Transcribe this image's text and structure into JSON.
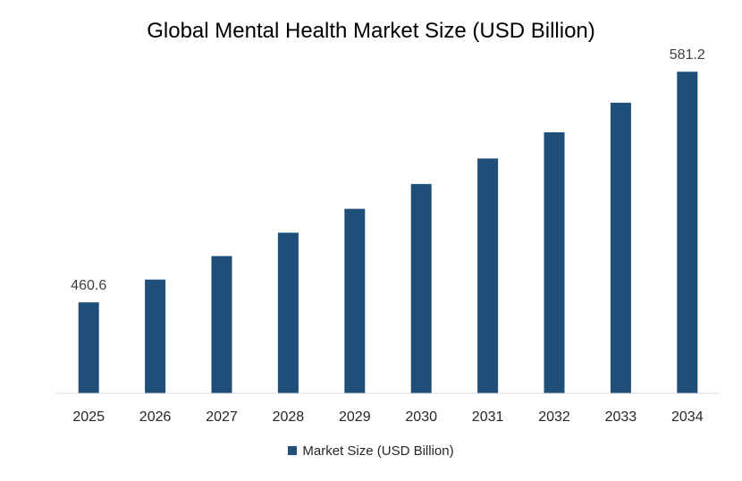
{
  "chart_data": {
    "type": "bar",
    "title": "Global Mental Health Market Size (USD Billion)",
    "categories": [
      "2025",
      "2026",
      "2027",
      "2028",
      "2029",
      "2030",
      "2031",
      "2032",
      "2033",
      "2034"
    ],
    "series": [
      {
        "name": "Market Size (USD Billion)",
        "values": [
          460.6,
          472.5,
          484.8,
          497.0,
          509.5,
          522.5,
          535.8,
          549.5,
          565.0,
          581.2
        ],
        "color": "#1F4E79"
      }
    ],
    "data_labels": [
      {
        "index": 0,
        "text": "460.6"
      },
      {
        "index": 9,
        "text": "581.2"
      }
    ],
    "ylim": [
      413,
      600
    ],
    "y_axis_visible": false,
    "grid": false,
    "legend_position": "bottom"
  }
}
